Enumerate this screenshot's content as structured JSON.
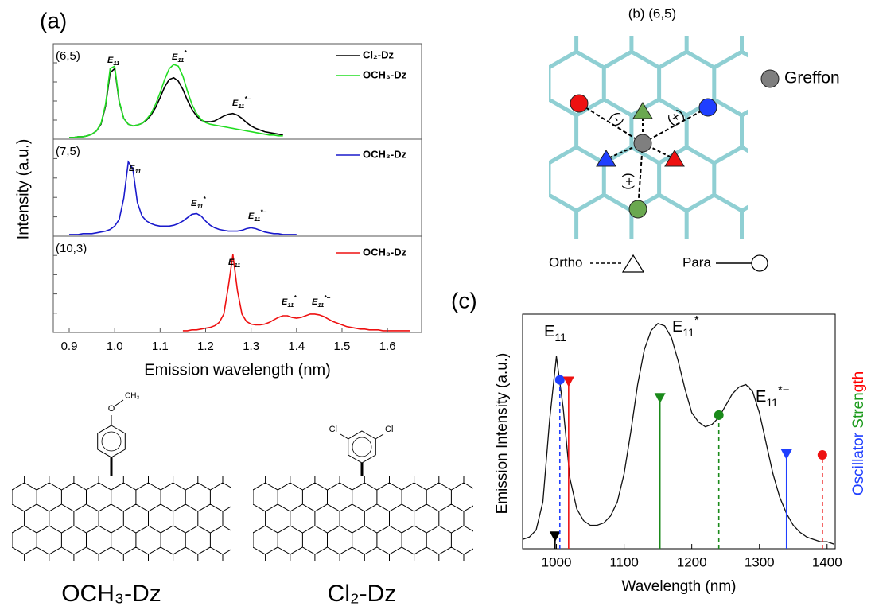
{
  "chart_data": [
    {
      "type": "line",
      "panel": "(a)",
      "label": "(6,5)",
      "ylabel": "Intensity (a.u.)",
      "xlim": [
        0.865,
        1.675
      ],
      "ylim": [
        0,
        1.15
      ],
      "x": [
        0.9,
        0.91,
        0.92,
        0.93,
        0.94,
        0.95,
        0.96,
        0.97,
        0.98,
        0.99,
        1.0,
        1.01,
        1.02,
        1.03,
        1.04,
        1.05,
        1.06,
        1.07,
        1.08,
        1.09,
        1.1,
        1.11,
        1.12,
        1.13,
        1.14,
        1.15,
        1.16,
        1.17,
        1.18,
        1.19,
        1.2,
        1.21,
        1.22,
        1.23,
        1.24,
        1.25,
        1.26,
        1.27,
        1.28,
        1.29,
        1.3,
        1.31,
        1.32,
        1.33,
        1.34,
        1.35,
        1.36,
        1.37
      ],
      "series": [
        {
          "name": "Cl₂-Dz",
          "color": "#000000",
          "values": [
            0.02,
            0.02,
            0.03,
            0.03,
            0.04,
            0.06,
            0.1,
            0.18,
            0.4,
            0.8,
            0.85,
            0.45,
            0.25,
            0.18,
            0.16,
            0.17,
            0.19,
            0.23,
            0.29,
            0.38,
            0.5,
            0.63,
            0.72,
            0.74,
            0.7,
            0.6,
            0.47,
            0.36,
            0.28,
            0.23,
            0.21,
            0.21,
            0.22,
            0.25,
            0.28,
            0.3,
            0.31,
            0.29,
            0.25,
            0.2,
            0.16,
            0.13,
            0.11,
            0.09,
            0.08,
            0.07,
            0.06,
            0.05
          ]
        },
        {
          "name": "OCH₃-Dz",
          "color": "#22dd22",
          "values": [
            0.02,
            0.02,
            0.03,
            0.03,
            0.04,
            0.06,
            0.1,
            0.19,
            0.42,
            0.85,
            0.88,
            0.46,
            0.25,
            0.18,
            0.16,
            0.17,
            0.19,
            0.24,
            0.31,
            0.42,
            0.56,
            0.72,
            0.85,
            0.9,
            0.88,
            0.76,
            0.58,
            0.42,
            0.31,
            0.24,
            0.2,
            0.18,
            0.17,
            0.16,
            0.15,
            0.14,
            0.13,
            0.12,
            0.11,
            0.1,
            0.09,
            0.08,
            0.07,
            0.06,
            0.05,
            0.05,
            0.04,
            0.04
          ]
        }
      ],
      "annotations": [
        {
          "main": "E",
          "sub": "11"
        },
        {
          "main": "E",
          "sub": "11",
          "sup": "*"
        },
        {
          "main": "E",
          "sub": "11",
          "sup": "*−"
        }
      ]
    },
    {
      "type": "line",
      "label": "(7,5)",
      "xlim": [
        0.865,
        1.675
      ],
      "ylim": [
        0,
        1.15
      ],
      "x": [
        0.9,
        0.91,
        0.92,
        0.93,
        0.94,
        0.95,
        0.96,
        0.97,
        0.98,
        0.99,
        1.0,
        1.01,
        1.02,
        1.03,
        1.04,
        1.05,
        1.06,
        1.07,
        1.08,
        1.09,
        1.1,
        1.11,
        1.12,
        1.13,
        1.14,
        1.15,
        1.16,
        1.17,
        1.18,
        1.19,
        1.2,
        1.21,
        1.22,
        1.23,
        1.24,
        1.25,
        1.26,
        1.27,
        1.28,
        1.29,
        1.3,
        1.31,
        1.32,
        1.33,
        1.34,
        1.35,
        1.36,
        1.37,
        1.38,
        1.39,
        1.4
      ],
      "series": [
        {
          "name": "OCH₃-Dz",
          "color": "#1a1acc",
          "values": [
            0.02,
            0.02,
            0.02,
            0.03,
            0.03,
            0.03,
            0.04,
            0.05,
            0.06,
            0.08,
            0.12,
            0.2,
            0.45,
            0.88,
            0.8,
            0.4,
            0.24,
            0.18,
            0.15,
            0.13,
            0.12,
            0.12,
            0.12,
            0.13,
            0.15,
            0.18,
            0.22,
            0.26,
            0.27,
            0.24,
            0.18,
            0.13,
            0.1,
            0.08,
            0.07,
            0.06,
            0.06,
            0.06,
            0.07,
            0.09,
            0.1,
            0.09,
            0.07,
            0.05,
            0.04,
            0.03,
            0.03,
            0.02,
            0.02,
            0.02,
            0.02
          ]
        }
      ],
      "annotations": [
        {
          "main": "E",
          "sub": "11"
        },
        {
          "main": "E",
          "sub": "11",
          "sup": "*"
        },
        {
          "main": "E",
          "sub": "11",
          "sup": "*−"
        }
      ]
    },
    {
      "type": "line",
      "label": "(10,3)",
      "xlabel": "Emission wavelength (nm)",
      "xlim": [
        0.865,
        1.675
      ],
      "ylim": [
        0,
        1.15
      ],
      "xticks": [
        0.9,
        {
          "value": 1,
          "label": "1.0"
        },
        1.1,
        1.2,
        1.3,
        1.4,
        1.5,
        1.6
      ],
      "x": [
        1.15,
        1.16,
        1.17,
        1.18,
        1.19,
        1.2,
        1.21,
        1.22,
        1.23,
        1.24,
        1.25,
        1.26,
        1.27,
        1.28,
        1.29,
        1.3,
        1.31,
        1.32,
        1.33,
        1.34,
        1.35,
        1.36,
        1.37,
        1.38,
        1.39,
        1.4,
        1.41,
        1.42,
        1.43,
        1.44,
        1.45,
        1.46,
        1.47,
        1.48,
        1.49,
        1.5,
        1.51,
        1.52,
        1.53,
        1.54,
        1.55,
        1.56,
        1.57,
        1.58,
        1.59,
        1.6,
        1.61,
        1.62,
        1.63,
        1.64,
        1.65
      ],
      "series": [
        {
          "name": "OCH₃-Dz",
          "color": "#ee1111",
          "values": [
            0.02,
            0.02,
            0.03,
            0.03,
            0.04,
            0.05,
            0.06,
            0.08,
            0.12,
            0.22,
            0.55,
            0.93,
            0.5,
            0.22,
            0.13,
            0.1,
            0.09,
            0.09,
            0.1,
            0.12,
            0.15,
            0.18,
            0.2,
            0.2,
            0.18,
            0.17,
            0.18,
            0.2,
            0.22,
            0.22,
            0.21,
            0.19,
            0.16,
            0.13,
            0.11,
            0.09,
            0.07,
            0.06,
            0.05,
            0.04,
            0.04,
            0.03,
            0.03,
            0.03,
            0.02,
            0.02,
            0.02,
            0.02,
            0.02,
            0.02,
            0.02
          ]
        }
      ],
      "annotations": [
        {
          "main": "E",
          "sub": "11"
        },
        {
          "main": "E",
          "sub": "11",
          "sup": "*"
        },
        {
          "main": "E",
          "sub": "11",
          "sup": "*−"
        }
      ]
    },
    {
      "type": "line",
      "panel": "(c)",
      "xlabel": "Wavelength (nm)",
      "ylabel": "Emission Intensity (a.u.)",
      "xlim": [
        950,
        1412
      ],
      "ylim": [
        0,
        1
      ],
      "xticks": [
        1000,
        1100,
        1200,
        1300,
        1400
      ],
      "x": [
        950,
        960,
        970,
        980,
        990,
        1000,
        1010,
        1020,
        1030,
        1040,
        1050,
        1060,
        1070,
        1080,
        1090,
        1100,
        1110,
        1120,
        1130,
        1140,
        1150,
        1160,
        1170,
        1180,
        1190,
        1200,
        1210,
        1220,
        1230,
        1240,
        1250,
        1260,
        1270,
        1280,
        1290,
        1300,
        1310,
        1320,
        1330,
        1340,
        1350,
        1360,
        1370,
        1380,
        1390,
        1400,
        1410
      ],
      "color": "#111111",
      "values": [
        0.04,
        0.05,
        0.08,
        0.2,
        0.55,
        0.82,
        0.6,
        0.3,
        0.17,
        0.12,
        0.1,
        0.1,
        0.11,
        0.14,
        0.2,
        0.32,
        0.5,
        0.7,
        0.85,
        0.93,
        0.96,
        0.95,
        0.9,
        0.8,
        0.68,
        0.58,
        0.54,
        0.52,
        0.53,
        0.56,
        0.61,
        0.66,
        0.69,
        0.7,
        0.67,
        0.58,
        0.45,
        0.32,
        0.22,
        0.15,
        0.1,
        0.07,
        0.05,
        0.04,
        0.03,
        0.03,
        0.02
      ],
      "sticks": {
        "x": [
          998,
          1005,
          1018,
          1153,
          1240,
          1340,
          1393
        ],
        "values": [
          0.05,
          0.72,
          0.71,
          0.64,
          0.57,
          0.4,
          0.4
        ],
        "colors": [
          "#000000",
          "#1f3fff",
          "#ee1111",
          "#1a8a1a",
          "#1a8a1a",
          "#1f3fff",
          "#ee1111"
        ],
        "markers": [
          "triangle",
          "circle",
          "triangle",
          "triangle",
          "circle",
          "triangle",
          "circle"
        ],
        "dashed": [
          false,
          true,
          false,
          false,
          true,
          false,
          true
        ]
      },
      "annotations": [
        {
          "main": "E",
          "sub": "11"
        },
        {
          "main": "E",
          "sub": "11",
          "sup": "*"
        },
        {
          "main": "E",
          "sub": "11",
          "sup": "*−"
        }
      ],
      "side_label": [
        {
          "text": "Oscillator ",
          "color": "#1f3fff"
        },
        {
          "text": "Stren",
          "color": "#1a9a1a"
        },
        {
          "text": "gth",
          "color": "#ff0000"
        }
      ]
    }
  ],
  "panel_b": {
    "title": "(b) (6,5)",
    "signs": [
      "(-)",
      "(+)",
      "(+)"
    ],
    "legend": "Greffon",
    "ortho": "Ortho",
    "para": "Para"
  },
  "molecules": [
    {
      "label": "OCH₃-Dz",
      "atoms": [
        "O",
        "CH₃"
      ]
    },
    {
      "label": "Cl₂-Dz",
      "atoms": [
        "Cl",
        "Cl"
      ]
    }
  ]
}
